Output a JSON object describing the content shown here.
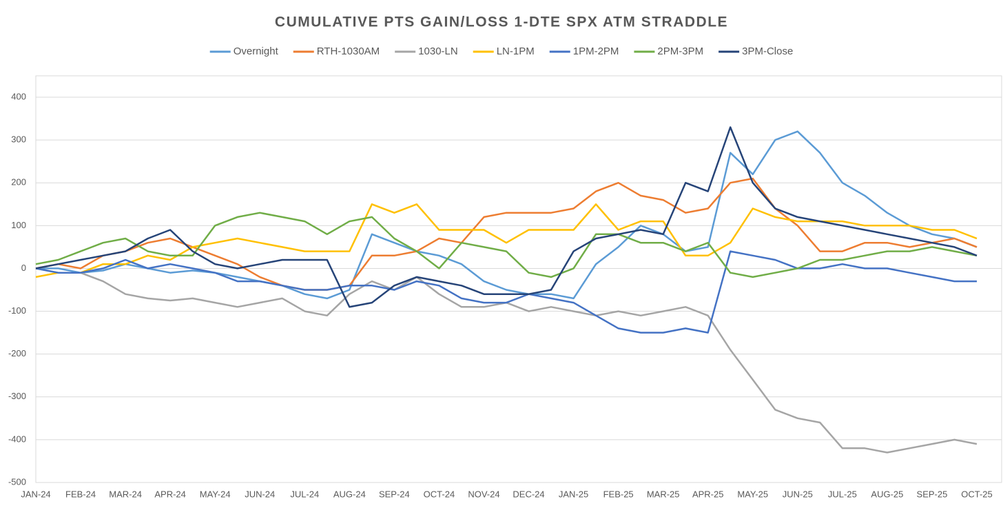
{
  "chart_data": {
    "type": "line",
    "title": "CUMULATIVE  PTS GAIN/LOSS  1-DTE  SPX  ATM  STRADDLE",
    "categories": [
      "JAN-24",
      null,
      "FEB-24",
      null,
      "MAR-24",
      null,
      "APR-24",
      null,
      "MAY-24",
      null,
      "JUN-24",
      null,
      "JUL-24",
      null,
      "AUG-24",
      null,
      "SEP-24",
      null,
      "OCT-24",
      null,
      "NOV-24",
      null,
      "DEC-24",
      null,
      "JAN-25",
      null,
      "FEB-25",
      null,
      "MAR-25",
      null,
      "APR-25",
      null,
      "MAY-25",
      null,
      "JUN-25",
      null,
      "JUL-25",
      null,
      "AUG-25",
      null,
      "SEP-25",
      null,
      "OCT-25"
    ],
    "ylim": [
      -500,
      400
    ],
    "yticks": [
      -500,
      -400,
      -300,
      -200,
      -100,
      0,
      100,
      200,
      300,
      400
    ],
    "grid": true,
    "legend": "top",
    "series": [
      {
        "name": "Overnight",
        "color": "#5b9bd5",
        "values": [
          0,
          0,
          -10,
          -5,
          10,
          0,
          -10,
          -5,
          -10,
          -20,
          -30,
          -40,
          -60,
          -70,
          -50,
          80,
          60,
          40,
          30,
          10,
          -30,
          -50,
          -60,
          -60,
          -70,
          10,
          50,
          100,
          80,
          40,
          50,
          270,
          220,
          300,
          320,
          270,
          200,
          170,
          130,
          100,
          80,
          70,
          50
        ]
      },
      {
        "name": "RTH-1030AM",
        "color": "#ed7d31",
        "values": [
          0,
          10,
          0,
          30,
          40,
          60,
          70,
          50,
          30,
          10,
          -20,
          -40,
          -50,
          -50,
          -40,
          30,
          30,
          40,
          70,
          60,
          120,
          130,
          130,
          130,
          140,
          180,
          200,
          170,
          160,
          130,
          140,
          200,
          210,
          140,
          100,
          40,
          40,
          60,
          60,
          50,
          60,
          70,
          50
        ]
      },
      {
        "name": "1030-LN",
        "color": "#a5a5a5",
        "values": [
          0,
          -10,
          -10,
          -30,
          -60,
          -70,
          -75,
          -70,
          -80,
          -90,
          -80,
          -70,
          -100,
          -110,
          -60,
          -30,
          -50,
          -20,
          -60,
          -90,
          -90,
          -80,
          -100,
          -90,
          -100,
          -110,
          -100,
          -110,
          -100,
          -90,
          -110,
          -190,
          -260,
          -330,
          -350,
          -360,
          -420,
          -420,
          -430,
          -420,
          -410,
          -400,
          -410
        ]
      },
      {
        "name": "LN-1PM",
        "color": "#ffc000",
        "values": [
          -20,
          -10,
          -10,
          10,
          10,
          30,
          20,
          50,
          60,
          70,
          60,
          50,
          40,
          40,
          40,
          150,
          130,
          150,
          90,
          90,
          90,
          60,
          90,
          90,
          90,
          150,
          90,
          110,
          110,
          30,
          30,
          60,
          140,
          120,
          110,
          110,
          110,
          100,
          100,
          100,
          90,
          90,
          70
        ]
      },
      {
        "name": "1PM-2PM",
        "color": "#4472c4",
        "values": [
          0,
          -10,
          -10,
          0,
          20,
          0,
          10,
          0,
          -10,
          -30,
          -30,
          -40,
          -50,
          -50,
          -40,
          -40,
          -50,
          -30,
          -40,
          -70,
          -80,
          -80,
          -60,
          -70,
          -80,
          -110,
          -140,
          -150,
          -150,
          -140,
          -150,
          40,
          30,
          20,
          0,
          0,
          10,
          0,
          0,
          -10,
          -20,
          -30,
          -30
        ]
      },
      {
        "name": "2PM-3PM",
        "color": "#70ad47",
        "values": [
          10,
          20,
          40,
          60,
          70,
          40,
          30,
          30,
          100,
          120,
          130,
          120,
          110,
          80,
          110,
          120,
          70,
          40,
          0,
          60,
          50,
          40,
          -10,
          -20,
          0,
          80,
          80,
          60,
          60,
          40,
          60,
          -10,
          -20,
          -10,
          0,
          20,
          20,
          30,
          40,
          40,
          50,
          40,
          30
        ]
      },
      {
        "name": "3PM-Close",
        "color": "#264478",
        "values": [
          0,
          10,
          20,
          30,
          40,
          70,
          90,
          40,
          10,
          0,
          10,
          20,
          20,
          20,
          -90,
          -80,
          -40,
          -20,
          -30,
          -40,
          -60,
          -60,
          -60,
          -50,
          40,
          70,
          80,
          90,
          80,
          200,
          180,
          330,
          200,
          140,
          120,
          110,
          100,
          90,
          80,
          70,
          60,
          50,
          30
        ]
      }
    ]
  }
}
